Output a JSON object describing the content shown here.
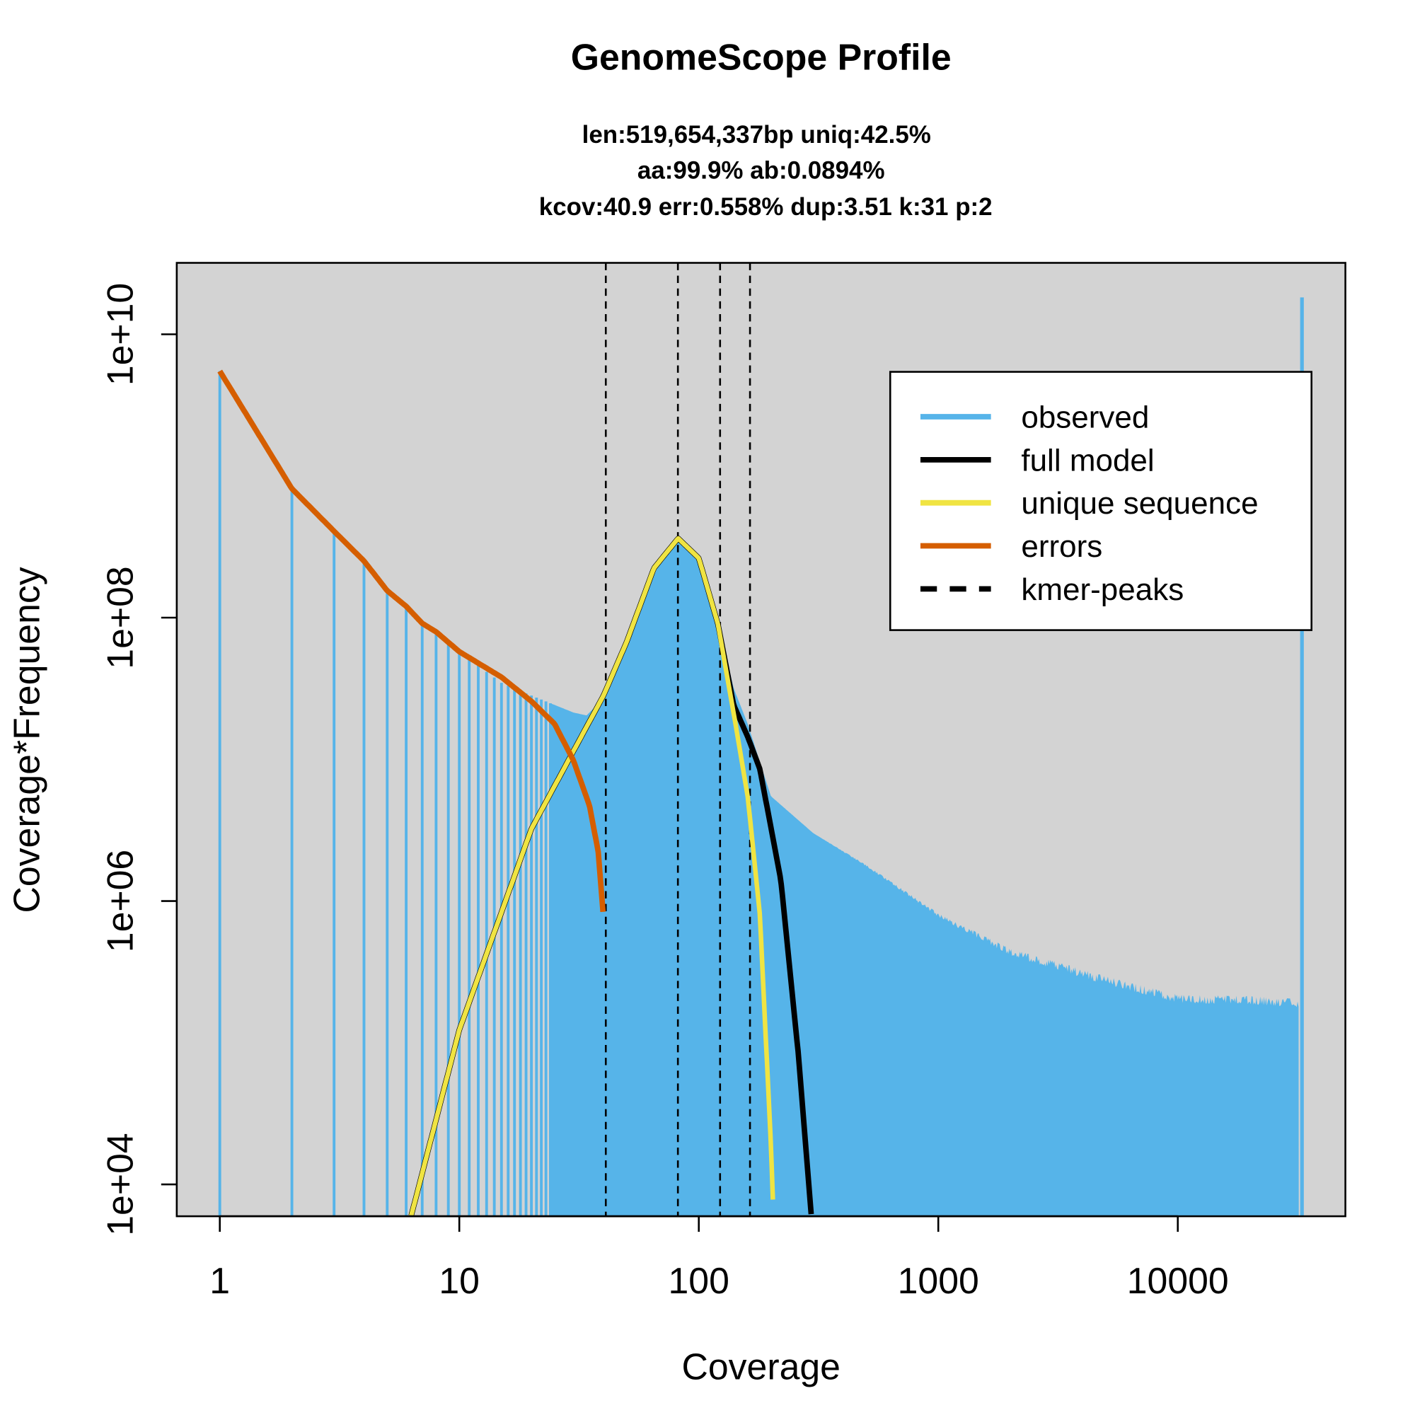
{
  "chart_data": {
    "type": "line",
    "title": "GenomeScope Profile",
    "subtitle_lines": [
      "len:519,654,337bp uniq:42.5%",
      "aa:99.9% ab:0.0894%",
      "kcov:40.9 err:0.558%  dup:3.51  k:31 p:2"
    ],
    "xlabel": "Coverage",
    "ylabel": "Coverage*Frequency",
    "xscale": "log",
    "yscale": "log",
    "xlim": [
      0.66,
      50000
    ],
    "ylim": [
      5500,
      30000000000
    ],
    "xticks": [
      1,
      10,
      100,
      1000,
      10000
    ],
    "xtick_labels": [
      "1",
      "10",
      "100",
      "1000",
      "10000"
    ],
    "yticks": [
      10000,
      1000000,
      100000000,
      10000000000
    ],
    "ytick_labels": [
      "1e+04",
      "1e+06",
      "1e+08",
      "1e+10"
    ],
    "background": "#D3D3D3",
    "legend": {
      "placement": "top-right",
      "entries": [
        {
          "label": "observed",
          "color": "#56B4E9",
          "style": "solid"
        },
        {
          "label": "full model",
          "color": "#000000",
          "style": "solid"
        },
        {
          "label": "unique sequence",
          "color": "#F0E442",
          "style": "solid"
        },
        {
          "label": "errors",
          "color": "#D55E00",
          "style": "solid"
        },
        {
          "label": "kmer-peaks",
          "color": "#000000",
          "style": "dashed"
        }
      ]
    },
    "kmer_peaks": [
      40.9,
      81.8,
      122.7,
      163.6
    ],
    "series": [
      {
        "name": "observed",
        "color": "#56B4E9",
        "kind": "bars",
        "x": [
          1,
          2,
          3,
          4,
          5,
          6,
          7,
          8,
          10,
          15,
          20,
          30,
          34,
          40,
          50,
          60,
          70,
          82,
          100,
          120,
          140,
          160,
          200,
          300,
          500,
          1000,
          2000,
          5000,
          10000,
          20000,
          32000
        ],
        "log10_y": [
          9.74,
          8.91,
          8.61,
          8.4,
          8.2,
          8.09,
          7.96,
          7.9,
          7.76,
          7.54,
          7.45,
          7.33,
          7.31,
          7.43,
          7.8,
          8.16,
          8.42,
          8.56,
          8.4,
          7.96,
          7.5,
          7.25,
          6.74,
          6.48,
          6.25,
          5.9,
          5.64,
          5.44,
          5.31,
          5.3,
          5.28
        ],
        "final_spike": {
          "x": 33000,
          "log10_y": 10.26
        }
      },
      {
        "name": "full model",
        "color": "#000000",
        "x": [
          6.3,
          10,
          20,
          30,
          40,
          50,
          65,
          82,
          100,
          120,
          140,
          160,
          180,
          220,
          260,
          295
        ],
        "log10_y": [
          3.78,
          5.09,
          6.51,
          7.06,
          7.45,
          7.83,
          8.35,
          8.56,
          8.42,
          7.96,
          7.38,
          7.16,
          6.93,
          6.15,
          4.93,
          3.78
        ]
      },
      {
        "name": "unique sequence",
        "color": "#F0E442",
        "x": [
          6.3,
          10,
          20,
          30,
          40,
          50,
          65,
          82,
          100,
          120,
          140,
          160,
          180,
          200,
          205
        ],
        "log10_y": [
          3.78,
          5.09,
          6.51,
          7.06,
          7.45,
          7.83,
          8.35,
          8.56,
          8.42,
          7.96,
          7.32,
          6.74,
          5.9,
          4.28,
          3.78
        ]
      },
      {
        "name": "errors",
        "color": "#D55E00",
        "x": [
          1,
          2,
          3,
          4,
          5,
          6,
          7,
          8,
          10,
          15,
          20,
          25,
          30,
          35,
          38,
          40
        ],
        "log10_y": [
          9.74,
          8.91,
          8.61,
          8.4,
          8.19,
          8.08,
          7.96,
          7.9,
          7.76,
          7.58,
          7.41,
          7.25,
          6.99,
          6.67,
          6.35,
          5.88
        ]
      }
    ]
  }
}
